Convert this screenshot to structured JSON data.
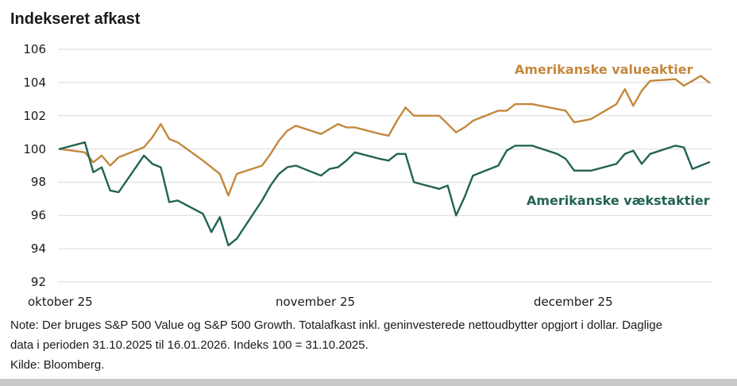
{
  "title": "Indekseret afkast",
  "chart_data": {
    "type": "line",
    "title": "Indekseret afkast",
    "ylim": [
      92,
      106
    ],
    "yticks": [
      106,
      104,
      102,
      100,
      98,
      96,
      94,
      92
    ],
    "xtick_labels": [
      "oktober 25",
      "november 25",
      "december 25"
    ],
    "x_unit": "calendar-day offset from 31.10.2025 (index 100 = 31.10.2025)",
    "x_range": [
      0,
      77
    ],
    "grid": "horizontal",
    "legend_position": "inline-labels",
    "series": [
      {
        "name": "Amerikanske valueaktier",
        "color": "#c5873c",
        "points": [
          [
            0,
            100.0
          ],
          [
            3,
            99.8
          ],
          [
            4,
            99.2
          ],
          [
            5,
            99.6
          ],
          [
            6,
            99.0
          ],
          [
            7,
            99.5
          ],
          [
            10,
            100.1
          ],
          [
            11,
            100.7
          ],
          [
            12,
            101.5
          ],
          [
            13,
            100.6
          ],
          [
            14,
            100.4
          ],
          [
            17,
            99.3
          ],
          [
            18,
            98.9
          ],
          [
            19,
            98.5
          ],
          [
            20,
            97.2
          ],
          [
            21,
            98.5
          ],
          [
            24,
            99.0
          ],
          [
            25,
            99.7
          ],
          [
            26,
            100.5
          ],
          [
            27,
            101.1
          ],
          [
            28,
            101.4
          ],
          [
            31,
            100.9
          ],
          [
            32,
            101.2
          ],
          [
            33,
            101.5
          ],
          [
            34,
            101.3
          ],
          [
            35,
            101.3
          ],
          [
            38,
            100.9
          ],
          [
            39,
            100.8
          ],
          [
            40,
            101.7
          ],
          [
            41,
            102.5
          ],
          [
            42,
            102.0
          ],
          [
            45,
            102.0
          ],
          [
            46,
            101.5
          ],
          [
            47,
            101.0
          ],
          [
            48,
            101.3
          ],
          [
            49,
            101.7
          ],
          [
            52,
            102.3
          ],
          [
            53,
            102.3
          ],
          [
            54,
            102.7
          ],
          [
            56,
            102.7
          ],
          [
            59,
            102.4
          ],
          [
            60,
            102.3
          ],
          [
            61,
            101.6
          ],
          [
            63,
            101.8
          ],
          [
            66,
            102.7
          ],
          [
            67,
            103.6
          ],
          [
            68,
            102.6
          ],
          [
            69,
            103.5
          ],
          [
            70,
            104.1
          ],
          [
            73,
            104.2
          ],
          [
            74,
            103.8
          ],
          [
            75,
            104.1
          ],
          [
            76,
            104.4
          ],
          [
            77,
            104.0
          ]
        ]
      },
      {
        "name": "Amerikanske vækstaktier",
        "color": "#226355",
        "points": [
          [
            0,
            100.0
          ],
          [
            3,
            100.4
          ],
          [
            4,
            98.6
          ],
          [
            5,
            98.9
          ],
          [
            6,
            97.5
          ],
          [
            7,
            97.4
          ],
          [
            10,
            99.6
          ],
          [
            11,
            99.1
          ],
          [
            12,
            98.9
          ],
          [
            13,
            96.8
          ],
          [
            14,
            96.9
          ],
          [
            17,
            96.1
          ],
          [
            18,
            95.0
          ],
          [
            19,
            95.9
          ],
          [
            20,
            94.2
          ],
          [
            21,
            94.6
          ],
          [
            24,
            96.9
          ],
          [
            25,
            97.8
          ],
          [
            26,
            98.5
          ],
          [
            27,
            98.9
          ],
          [
            28,
            99.0
          ],
          [
            31,
            98.4
          ],
          [
            32,
            98.8
          ],
          [
            33,
            98.9
          ],
          [
            34,
            99.3
          ],
          [
            35,
            99.8
          ],
          [
            38,
            99.4
          ],
          [
            39,
            99.3
          ],
          [
            40,
            99.7
          ],
          [
            41,
            99.7
          ],
          [
            42,
            98.0
          ],
          [
            45,
            97.6
          ],
          [
            46,
            97.8
          ],
          [
            47,
            96.0
          ],
          [
            48,
            97.1
          ],
          [
            49,
            98.4
          ],
          [
            52,
            99.0
          ],
          [
            53,
            99.9
          ],
          [
            54,
            100.2
          ],
          [
            56,
            100.2
          ],
          [
            59,
            99.7
          ],
          [
            60,
            99.4
          ],
          [
            61,
            98.7
          ],
          [
            63,
            98.7
          ],
          [
            66,
            99.1
          ],
          [
            67,
            99.7
          ],
          [
            68,
            99.9
          ],
          [
            69,
            99.1
          ],
          [
            70,
            99.7
          ],
          [
            73,
            100.2
          ],
          [
            74,
            100.1
          ],
          [
            75,
            98.8
          ],
          [
            76,
            99.0
          ],
          [
            77,
            99.2
          ]
        ]
      }
    ],
    "gridline_color": "#dadada"
  },
  "note": {
    "line1": "Note: Der bruges S&P 500 Value og S&P 500 Growth. Totalafkast inkl. geninvesterede nettoudbytter opgjort i dollar. Daglige",
    "line2": "data i perioden 31.10.2025 til 16.01.2026. Indeks 100 = 31.10.2025.",
    "source": "Kilde: Bloomberg."
  }
}
